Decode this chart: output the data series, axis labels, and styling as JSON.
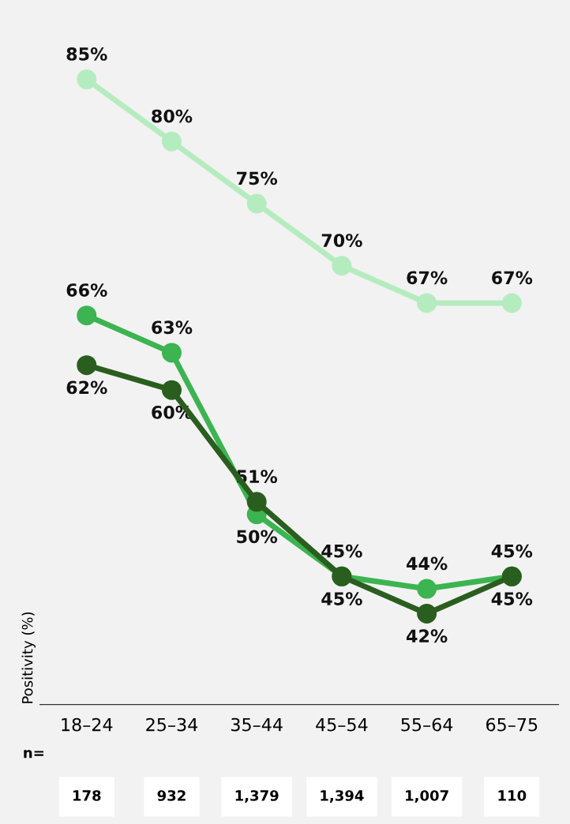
{
  "chart_data": {
    "type": "line",
    "ylabel": "Positivity (%)",
    "categories": [
      "18–24",
      "25–34",
      "35–44",
      "45–54",
      "55–64",
      "65–75"
    ],
    "series": [
      {
        "color": "#b5ecbf",
        "values": [
          85,
          80,
          75,
          70,
          67,
          67
        ],
        "value_labels": [
          "85%",
          "80%",
          "75%",
          "70%",
          "67%",
          "67%"
        ]
      },
      {
        "color": "#3cb451",
        "values": [
          66,
          63,
          50,
          45,
          44,
          45
        ],
        "value_labels": [
          "66%",
          "63%",
          "50%",
          "45%",
          "44%",
          "45%"
        ]
      },
      {
        "color": "#2a5e1f",
        "values": [
          62,
          60,
          51,
          45,
          42,
          45
        ],
        "value_labels": [
          "62%",
          "60%",
          "51%",
          "45%",
          "42%",
          "45%"
        ]
      }
    ],
    "marker": "circle",
    "grid": false,
    "tick_labels": "x",
    "annotations": [
      "n=",
      "178",
      "932",
      "1,379",
      "1,394",
      "1,007",
      "110"
    ]
  }
}
